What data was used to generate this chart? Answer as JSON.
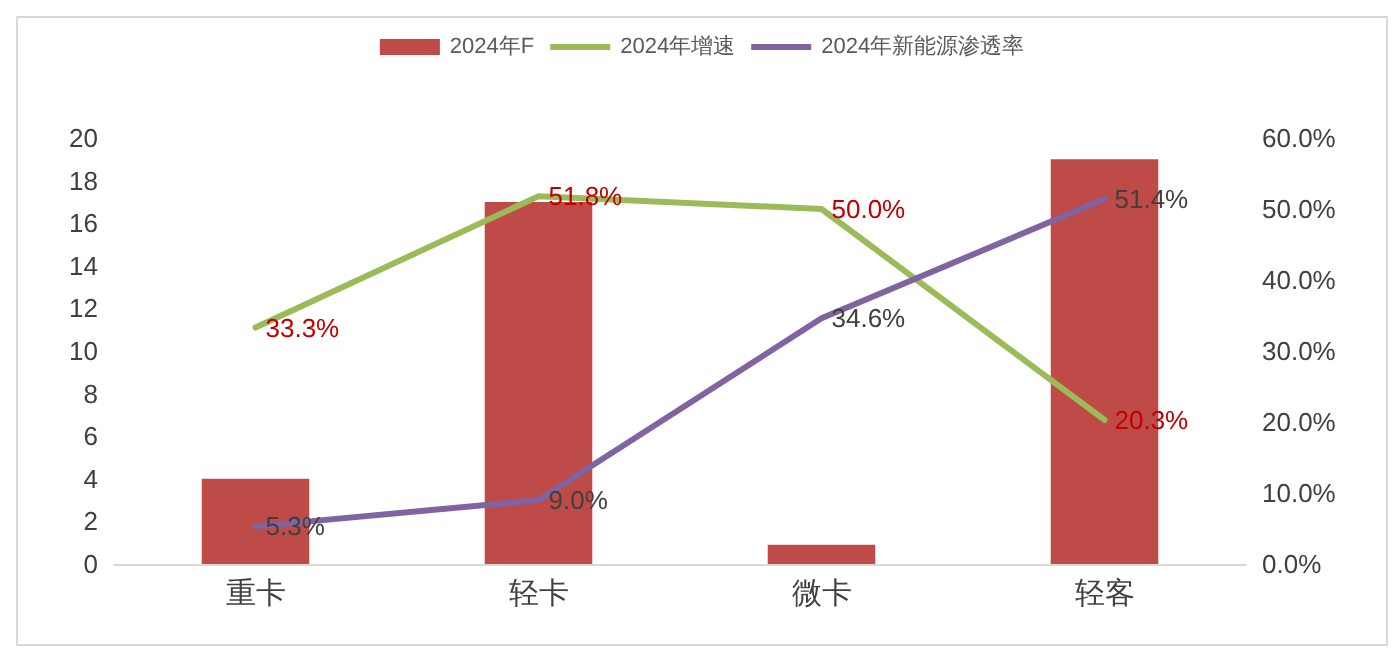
{
  "chart_data": {
    "type": "bar",
    "categories": [
      "重卡",
      "轻卡",
      "微卡",
      "轻客"
    ],
    "series": [
      {
        "name": "2024年F",
        "color": "#be4b48",
        "values": [
          4,
          17,
          0.9,
          19
        ]
      },
      {
        "name": "2024年增速",
        "type": "line",
        "axis": "y2",
        "color": "#9bbb59",
        "values": [
          33.3,
          51.8,
          50.0,
          20.3
        ],
        "value_labels": [
          "33.3%",
          "51.8%",
          "50.0%",
          "20.3%"
        ]
      },
      {
        "name": "2024年新能源渗透率",
        "type": "line",
        "axis": "y2",
        "color": "#8064a2",
        "values": [
          5.3,
          9.0,
          34.6,
          51.4
        ],
        "value_labels": [
          "5.3%",
          "9.0%",
          "34.6%",
          "51.4%"
        ]
      }
    ],
    "ylim": [
      0,
      20
    ],
    "yticks": [
      0,
      2,
      4,
      6,
      8,
      10,
      12,
      14,
      16,
      18,
      20
    ],
    "y2lim": [
      0,
      60
    ],
    "y2ticks": [
      {
        "value": 0,
        "label": "0.0%"
      },
      {
        "value": 10,
        "label": "10.0%"
      },
      {
        "value": 20,
        "label": "20.0%"
      },
      {
        "value": 30,
        "label": "30.0%"
      },
      {
        "value": 40,
        "label": "40.0%"
      },
      {
        "value": 50,
        "label": "50.0%"
      },
      {
        "value": 60,
        "label": "60.0%"
      }
    ],
    "legend": "top",
    "marker": "none",
    "line_style": "solid"
  }
}
